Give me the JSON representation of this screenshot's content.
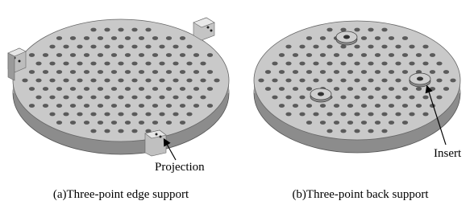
{
  "panels": [
    {
      "caption": "(a)Three-point edge support",
      "callout": "Projection"
    },
    {
      "caption": "(b)Three-point back support",
      "callout": "Insert"
    }
  ]
}
